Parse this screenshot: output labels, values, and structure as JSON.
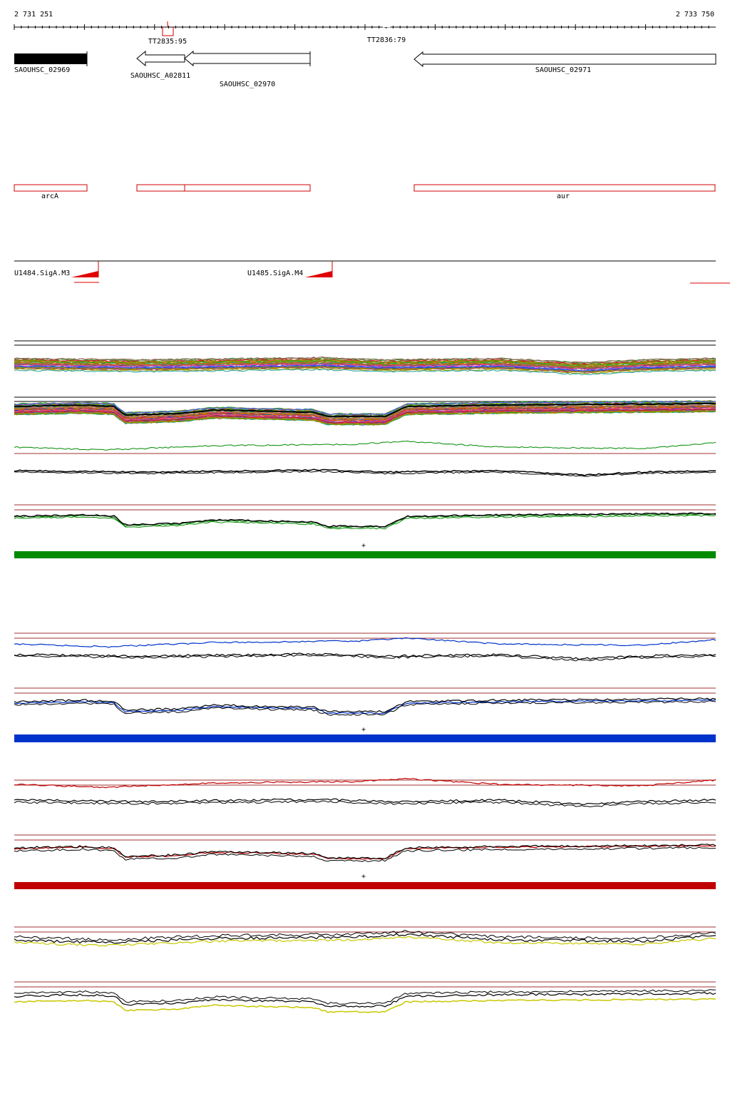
{
  "ruler": {
    "start_label": "2 731 251",
    "end_label": "2 733 750"
  },
  "terminators": [
    {
      "label": "TT2835:95"
    },
    {
      "label": "TT2836:79"
    }
  ],
  "genes": [
    {
      "label": "SAOUHSC_02969",
      "style": "filled"
    },
    {
      "label": "SAOUHSC_A02811",
      "style": "arrow-left"
    },
    {
      "label": "SAOUHSC_02970",
      "style": "arrow-left"
    },
    {
      "label": "SAOUHSC_02971",
      "style": "arrow-left"
    }
  ],
  "operons": [
    {
      "label": "arcA"
    },
    {
      "label": ""
    },
    {
      "label": ""
    },
    {
      "label": "aur"
    }
  ],
  "promoters": [
    {
      "label": "U1484.SigA.M3"
    },
    {
      "label": "U1485.SigA.M4"
    }
  ],
  "strand_markers": [
    "+",
    "+",
    "+"
  ],
  "colors": {
    "green": "#008a00",
    "blue": "#0033cc",
    "red": "#c00000",
    "yellow": "#c8c800",
    "reference_line": "#a03030",
    "operon": "#d00000"
  }
}
